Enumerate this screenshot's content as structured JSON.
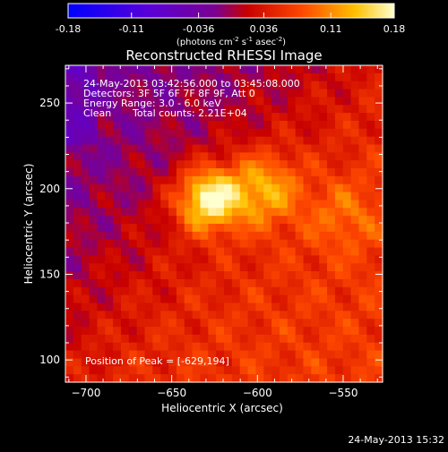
{
  "chart_data": {
    "type": "heatmap",
    "title": "Reconstructed RHESSI Image",
    "xlabel": "Heliocentric X (arcsec)",
    "ylabel": "Heliocentric Y (arcsec)",
    "xlim": [
      -712,
      -527
    ],
    "ylim": [
      87,
      272
    ],
    "x_ticks": [
      -700,
      -650,
      -600,
      -550
    ],
    "y_ticks": [
      100,
      150,
      200,
      250
    ],
    "colorbar": {
      "min": -0.18,
      "max": 0.18,
      "ticks": [
        "-0.18",
        "-0.11",
        "-0.036",
        "0.036",
        "0.11",
        "0.18"
      ],
      "label_parts": [
        "(photons cm",
        "-2",
        " s",
        "-1",
        " asec",
        "-2",
        ")"
      ]
    },
    "annotations": [
      "24-May-2013 03:42:56.000 to 03:45:08.000",
      "Detectors: 3F 5F 6F 7F 8F 9F, Att 0",
      "Energy Range: 3.0 - 6.0 keV",
      "Clean",
      "Total counts: 2.21E+04"
    ],
    "peak_text": "Position of Peak = [-629,194]",
    "peak": {
      "x": -629,
      "y": 194,
      "value": 0.18
    },
    "secondary_sources": [
      {
        "x": -597,
        "y": 200,
        "value": 0.12
      },
      {
        "x": -550,
        "y": 185,
        "value": 0.07
      }
    ],
    "timestamp": "24-May-2013 15:32"
  }
}
